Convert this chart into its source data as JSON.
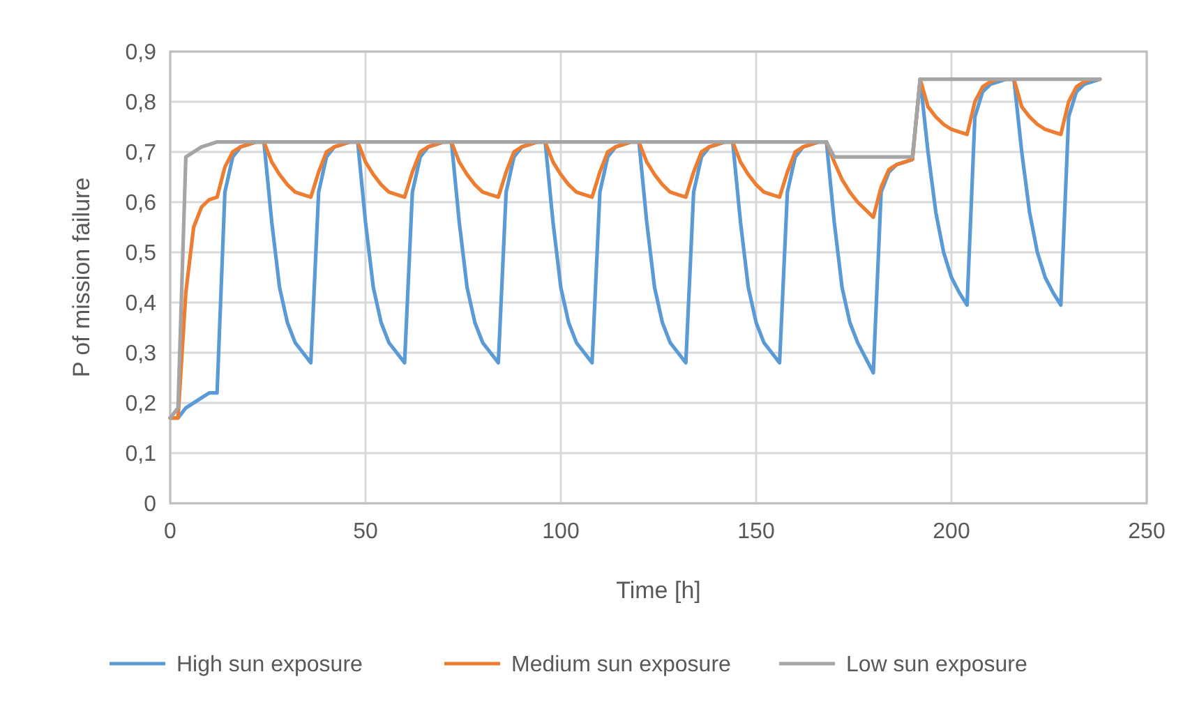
{
  "chart_data": {
    "type": "line",
    "xlabel": "Time [h]",
    "ylabel": "P of mission failure",
    "x": [
      0,
      2,
      4,
      6,
      8,
      10,
      12,
      14,
      16,
      18,
      20,
      22,
      24,
      26,
      28,
      30,
      32,
      34,
      36,
      38,
      40,
      42,
      44,
      46,
      48,
      50,
      52,
      54,
      56,
      58,
      60,
      62,
      64,
      66,
      68,
      70,
      72,
      74,
      76,
      78,
      80,
      82,
      84,
      86,
      88,
      90,
      92,
      94,
      96,
      98,
      100,
      102,
      104,
      106,
      108,
      110,
      112,
      114,
      116,
      118,
      120,
      122,
      124,
      126,
      128,
      130,
      132,
      134,
      136,
      138,
      140,
      142,
      144,
      146,
      148,
      150,
      152,
      154,
      156,
      158,
      160,
      162,
      164,
      166,
      168,
      170,
      172,
      174,
      176,
      178,
      180,
      182,
      184,
      186,
      188,
      190,
      192,
      194,
      196,
      198,
      200,
      202,
      204,
      206,
      208,
      210,
      212,
      214,
      216,
      218,
      220,
      222,
      224,
      226,
      228,
      230,
      232,
      234,
      236,
      238
    ],
    "xlim": [
      0,
      250
    ],
    "xticks": [
      0,
      50,
      100,
      150,
      200,
      250
    ],
    "ylim": [
      0,
      0.9
    ],
    "yticks": [
      {
        "value": 0,
        "label": "0"
      },
      {
        "value": 0.1,
        "label": "0,1"
      },
      {
        "value": 0.2,
        "label": "0,2"
      },
      {
        "value": 0.3,
        "label": "0,3"
      },
      {
        "value": 0.4,
        "label": "0,4"
      },
      {
        "value": 0.5,
        "label": "0,5"
      },
      {
        "value": 0.6,
        "label": "0,6"
      },
      {
        "value": 0.7,
        "label": "0,7"
      },
      {
        "value": 0.8,
        "label": "0,8"
      },
      {
        "value": 0.9,
        "label": "0,9"
      }
    ],
    "grid": true,
    "legend": "bottom",
    "marker": "none",
    "line_style": "solid",
    "series": [
      {
        "name": "High sun exposure",
        "color": "#5b9bd5",
        "values": [
          0.17,
          0.17,
          0.19,
          0.2,
          0.21,
          0.22,
          0.22,
          0.62,
          0.69,
          0.71,
          0.715,
          0.72,
          0.72,
          0.56,
          0.43,
          0.36,
          0.32,
          0.3,
          0.28,
          0.62,
          0.69,
          0.71,
          0.715,
          0.72,
          0.72,
          0.56,
          0.43,
          0.36,
          0.32,
          0.3,
          0.28,
          0.62,
          0.69,
          0.71,
          0.715,
          0.72,
          0.72,
          0.56,
          0.43,
          0.36,
          0.32,
          0.3,
          0.28,
          0.62,
          0.69,
          0.71,
          0.715,
          0.72,
          0.72,
          0.56,
          0.43,
          0.36,
          0.32,
          0.3,
          0.28,
          0.62,
          0.69,
          0.71,
          0.715,
          0.72,
          0.72,
          0.56,
          0.43,
          0.36,
          0.32,
          0.3,
          0.28,
          0.62,
          0.69,
          0.71,
          0.715,
          0.72,
          0.72,
          0.56,
          0.43,
          0.36,
          0.32,
          0.3,
          0.28,
          0.62,
          0.69,
          0.71,
          0.715,
          0.72,
          0.72,
          0.56,
          0.43,
          0.36,
          0.32,
          0.29,
          0.26,
          0.62,
          0.66,
          0.675,
          0.68,
          0.685,
          0.845,
          0.7,
          0.58,
          0.5,
          0.45,
          0.42,
          0.395,
          0.77,
          0.82,
          0.835,
          0.84,
          0.845,
          0.845,
          0.7,
          0.58,
          0.5,
          0.45,
          0.42,
          0.395,
          0.77,
          0.82,
          0.835,
          0.84,
          0.845
        ]
      },
      {
        "name": "Medium sun exposure",
        "color": "#ed7d31",
        "values": [
          0.17,
          0.17,
          0.42,
          0.55,
          0.59,
          0.605,
          0.61,
          0.67,
          0.7,
          0.71,
          0.715,
          0.72,
          0.72,
          0.68,
          0.655,
          0.635,
          0.62,
          0.615,
          0.61,
          0.66,
          0.7,
          0.71,
          0.715,
          0.72,
          0.72,
          0.68,
          0.655,
          0.635,
          0.62,
          0.615,
          0.61,
          0.66,
          0.7,
          0.71,
          0.715,
          0.72,
          0.72,
          0.68,
          0.655,
          0.635,
          0.62,
          0.615,
          0.61,
          0.66,
          0.7,
          0.71,
          0.715,
          0.72,
          0.72,
          0.68,
          0.655,
          0.635,
          0.62,
          0.615,
          0.61,
          0.66,
          0.7,
          0.71,
          0.715,
          0.72,
          0.72,
          0.68,
          0.655,
          0.635,
          0.62,
          0.615,
          0.61,
          0.66,
          0.7,
          0.71,
          0.715,
          0.72,
          0.72,
          0.68,
          0.655,
          0.635,
          0.62,
          0.615,
          0.61,
          0.66,
          0.7,
          0.71,
          0.715,
          0.72,
          0.72,
          0.68,
          0.645,
          0.62,
          0.6,
          0.585,
          0.57,
          0.63,
          0.665,
          0.675,
          0.68,
          0.685,
          0.845,
          0.79,
          0.77,
          0.755,
          0.745,
          0.74,
          0.735,
          0.8,
          0.83,
          0.84,
          0.845,
          0.845,
          0.845,
          0.79,
          0.77,
          0.755,
          0.745,
          0.74,
          0.735,
          0.8,
          0.83,
          0.84,
          0.845,
          0.845
        ]
      },
      {
        "name": "Low sun exposure",
        "color": "#a5a5a5",
        "values": [
          0.17,
          0.19,
          0.69,
          0.7,
          0.71,
          0.715,
          0.72,
          0.72,
          0.72,
          0.72,
          0.72,
          0.72,
          0.72,
          0.72,
          0.72,
          0.72,
          0.72,
          0.72,
          0.72,
          0.72,
          0.72,
          0.72,
          0.72,
          0.72,
          0.72,
          0.72,
          0.72,
          0.72,
          0.72,
          0.72,
          0.72,
          0.72,
          0.72,
          0.72,
          0.72,
          0.72,
          0.72,
          0.72,
          0.72,
          0.72,
          0.72,
          0.72,
          0.72,
          0.72,
          0.72,
          0.72,
          0.72,
          0.72,
          0.72,
          0.72,
          0.72,
          0.72,
          0.72,
          0.72,
          0.72,
          0.72,
          0.72,
          0.72,
          0.72,
          0.72,
          0.72,
          0.72,
          0.72,
          0.72,
          0.72,
          0.72,
          0.72,
          0.72,
          0.72,
          0.72,
          0.72,
          0.72,
          0.72,
          0.72,
          0.72,
          0.72,
          0.72,
          0.72,
          0.72,
          0.72,
          0.72,
          0.72,
          0.72,
          0.72,
          0.72,
          0.69,
          0.69,
          0.69,
          0.69,
          0.69,
          0.69,
          0.69,
          0.69,
          0.69,
          0.69,
          0.69,
          0.845,
          0.845,
          0.845,
          0.845,
          0.845,
          0.845,
          0.845,
          0.845,
          0.845,
          0.845,
          0.845,
          0.845,
          0.845,
          0.845,
          0.845,
          0.845,
          0.845,
          0.845,
          0.845,
          0.845,
          0.845,
          0.845,
          0.845,
          0.845
        ]
      }
    ]
  }
}
